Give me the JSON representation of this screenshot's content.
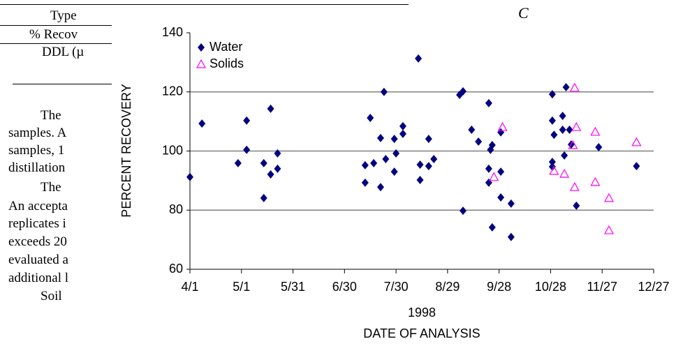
{
  "document": {
    "lines": [
      "Type",
      "% Recov",
      "DDL (µ",
      "The",
      "samples. A",
      "samples, 1",
      "distillation",
      "The",
      "An accepta",
      "replicates i",
      "exceeds 20",
      "evaluated a",
      "additional l",
      "Soil"
    ],
    "header_right": "C"
  },
  "chart_data": {
    "type": "scatter",
    "ylabel": "PERCENT RECOVERY",
    "xsublabel": "1998",
    "xlabel": "DATE OF ANALYSIS",
    "xlim": [
      91,
      361
    ],
    "ylim": [
      60,
      140
    ],
    "grid": true,
    "legend": "upper left",
    "xticks": [
      {
        "value": 91,
        "label": "4/1"
      },
      {
        "value": 121,
        "label": "5/1"
      },
      {
        "value": 151,
        "label": "5/31"
      },
      {
        "value": 181,
        "label": "6/30"
      },
      {
        "value": 211,
        "label": "7/30"
      },
      {
        "value": 241,
        "label": "8/29"
      },
      {
        "value": 271,
        "label": "9/28"
      },
      {
        "value": 301,
        "label": "10/28"
      },
      {
        "value": 331,
        "label": "11/27"
      },
      {
        "value": 361,
        "label": "12/27"
      }
    ],
    "yticks": [
      60,
      80,
      100,
      120,
      140
    ],
    "series": [
      {
        "name": "Water",
        "color": "#000080",
        "marker": "diamond",
        "x": [
          91,
          98,
          119,
          124,
          124,
          134,
          134,
          138,
          138,
          142,
          142,
          193,
          193,
          196,
          198,
          202,
          202,
          204,
          205,
          210,
          210,
          211,
          215,
          215,
          224,
          225,
          225,
          230,
          230,
          233,
          248,
          250,
          250,
          255,
          259,
          265,
          265,
          272,
          265,
          266,
          267,
          267,
          272,
          272,
          278,
          278,
          302,
          302,
          302,
          302,
          308,
          313,
          309,
          308,
          310,
          312,
          316,
          329,
          351,
          303
        ],
        "values": [
          91.2,
          109.3,
          95.9,
          110.3,
          100.4,
          95.9,
          84.1,
          114.3,
          92.1,
          99.2,
          94.0,
          95.2,
          89.3,
          111.2,
          95.9,
          104.4,
          87.8,
          120.0,
          97.3,
          104.1,
          93.0,
          99.2,
          105.8,
          108.4,
          131.3,
          95.4,
          90.2,
          104.1,
          94.9,
          97.3,
          119.0,
          120.2,
          79.8,
          107.2,
          103.2,
          94.0,
          89.3,
          93.0,
          116.2,
          100.4,
          102.0,
          74.2,
          106.3,
          84.3,
          82.2,
          70.9,
          94.7,
          96.3,
          119.2,
          110.3,
          111.9,
          102.2,
          98.5,
          107.2,
          121.6,
          107.2,
          81.5,
          101.3,
          94.9,
          105.5
        ]
      },
      {
        "name": "Solids",
        "color": "#ff00ff",
        "marker": "triangle",
        "x": [
          268,
          273,
          303,
          309,
          314,
          315,
          316,
          315,
          327,
          327,
          335,
          335,
          351
        ],
        "values": [
          91.2,
          108.1,
          93.3,
          92.3,
          102.0,
          121.4,
          108.1,
          87.8,
          106.5,
          89.5,
          84.1,
          73.2,
          103.0
        ]
      }
    ]
  }
}
